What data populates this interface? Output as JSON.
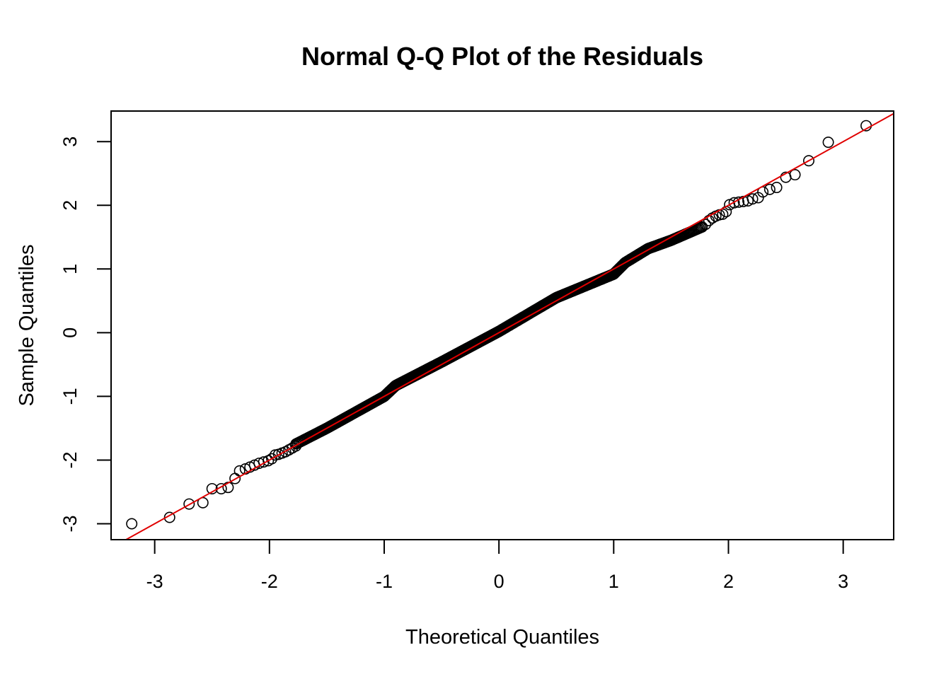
{
  "chart_data": {
    "type": "scatter",
    "title": "Normal Q-Q Plot of the Residuals",
    "xlabel": "Theoretical Quantiles",
    "ylabel": "Sample Quantiles",
    "xlim": [
      -3.38,
      3.44
    ],
    "ylim": [
      -3.25,
      3.48
    ],
    "xticks": [
      -3,
      -2,
      -1,
      0,
      1,
      2,
      3
    ],
    "yticks": [
      -3,
      -2,
      -1,
      0,
      1,
      2,
      3
    ],
    "grid": false,
    "n_points": 1000,
    "reference_line": {
      "intercept": 0.0,
      "slope": 1.0,
      "color": "#e00000"
    },
    "marker": {
      "shape": "open-circle",
      "color": "#000000"
    },
    "tail_points": {
      "lower": [
        {
          "x": -3.2,
          "y": -3.0
        },
        {
          "x": -2.87,
          "y": -2.9
        },
        {
          "x": -2.7,
          "y": -2.69
        },
        {
          "x": -2.58,
          "y": -2.67
        },
        {
          "x": -2.5,
          "y": -2.45
        },
        {
          "x": -2.42,
          "y": -2.45
        },
        {
          "x": -2.36,
          "y": -2.43
        },
        {
          "x": -2.3,
          "y": -2.29
        },
        {
          "x": -2.26,
          "y": -2.17
        },
        {
          "x": -2.21,
          "y": -2.14
        },
        {
          "x": -2.17,
          "y": -2.11
        },
        {
          "x": -2.13,
          "y": -2.08
        },
        {
          "x": -2.09,
          "y": -2.05
        },
        {
          "x": -2.05,
          "y": -2.03
        },
        {
          "x": -2.01,
          "y": -2.01
        },
        {
          "x": -1.98,
          "y": -1.98
        },
        {
          "x": -1.95,
          "y": -1.92
        },
        {
          "x": -1.92,
          "y": -1.91
        },
        {
          "x": -1.89,
          "y": -1.89
        },
        {
          "x": -1.86,
          "y": -1.87
        },
        {
          "x": -1.83,
          "y": -1.84
        },
        {
          "x": -1.8,
          "y": -1.81
        },
        {
          "x": -1.77,
          "y": -1.78
        }
      ],
      "upper": [
        {
          "x": 1.77,
          "y": 1.66
        },
        {
          "x": 1.8,
          "y": 1.7
        },
        {
          "x": 1.83,
          "y": 1.76
        },
        {
          "x": 1.86,
          "y": 1.8
        },
        {
          "x": 1.89,
          "y": 1.83
        },
        {
          "x": 1.92,
          "y": 1.85
        },
        {
          "x": 1.95,
          "y": 1.86
        },
        {
          "x": 1.98,
          "y": 1.9
        },
        {
          "x": 2.01,
          "y": 2.01
        },
        {
          "x": 2.05,
          "y": 2.04
        },
        {
          "x": 2.09,
          "y": 2.05
        },
        {
          "x": 2.13,
          "y": 2.06
        },
        {
          "x": 2.17,
          "y": 2.07
        },
        {
          "x": 2.21,
          "y": 2.1
        },
        {
          "x": 2.26,
          "y": 2.12
        },
        {
          "x": 2.3,
          "y": 2.21
        },
        {
          "x": 2.36,
          "y": 2.25
        },
        {
          "x": 2.42,
          "y": 2.28
        },
        {
          "x": 2.5,
          "y": 2.44
        },
        {
          "x": 2.58,
          "y": 2.48
        },
        {
          "x": 2.7,
          "y": 2.7
        },
        {
          "x": 2.87,
          "y": 2.99
        },
        {
          "x": 3.2,
          "y": 3.25
        }
      ]
    },
    "body_wiggle": [
      {
        "x": -2.0,
        "y": -1.96
      },
      {
        "x": -1.5,
        "y": -1.5
      },
      {
        "x": -1.0,
        "y": -1.0
      },
      {
        "x": -0.9,
        "y": -0.83
      },
      {
        "x": -0.5,
        "y": -0.46
      },
      {
        "x": 0.0,
        "y": 0.02
      },
      {
        "x": 0.5,
        "y": 0.55
      },
      {
        "x": 1.0,
        "y": 0.92
      },
      {
        "x": 1.1,
        "y": 1.1
      },
      {
        "x": 1.3,
        "y": 1.32
      },
      {
        "x": 1.5,
        "y": 1.45
      },
      {
        "x": 1.77,
        "y": 1.66
      }
    ]
  }
}
